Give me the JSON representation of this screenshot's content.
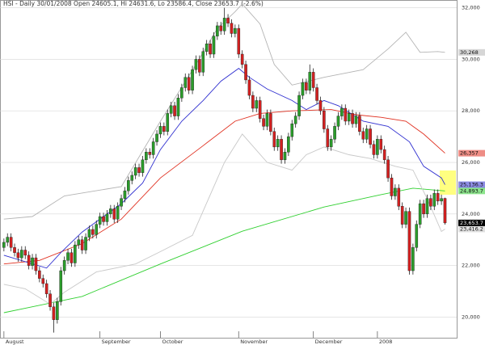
{
  "chart_data": {
    "type": "candlestick",
    "title": "HSI - Daily 30/01/2008 Open 24605.1, Hi 24631.6, Lo 23586.4, Close 23653.7 (-2.6%)",
    "up_color": "#2a9d2a",
    "down_color": "#d42020",
    "xlim": [
      -1.1,
      127.3
    ],
    "ylim": [
      19200,
      32300
    ],
    "yticks": [
      {
        "value": 20000,
        "label": "20,000"
      },
      {
        "value": 22000,
        "label": "22,000"
      },
      {
        "value": 24000,
        "label": "24,000"
      },
      {
        "value": 26000,
        "label": "26,000"
      },
      {
        "value": 28000,
        "label": "28,000"
      },
      {
        "value": 30000,
        "label": "30,000"
      },
      {
        "value": 32000,
        "label": "32,000"
      }
    ],
    "xticks": [
      {
        "value": 0,
        "label": "August"
      },
      {
        "value": 27,
        "label": "September"
      },
      {
        "value": 44,
        "label": "October"
      },
      {
        "value": 66,
        "label": "November"
      },
      {
        "value": 87,
        "label": "December"
      },
      {
        "value": 105,
        "label": "2008"
      }
    ],
    "close_label": "23,653.7",
    "ohlc": [
      [
        22700,
        23050,
        22550,
        22900
      ],
      [
        22900,
        23250,
        22750,
        23100
      ],
      [
        23100,
        23250,
        22550,
        22700
      ],
      [
        22700,
        22850,
        22350,
        22500
      ],
      [
        22500,
        22650,
        22150,
        22300
      ],
      [
        22300,
        22750,
        22150,
        22600
      ],
      [
        22600,
        22750,
        22250,
        22400
      ],
      [
        22400,
        22550,
        21850,
        22000
      ],
      [
        22000,
        22450,
        21850,
        22300
      ],
      [
        22300,
        22450,
        21650,
        21800
      ],
      [
        21800,
        21950,
        21350,
        21500
      ],
      [
        21500,
        21650,
        21150,
        21300
      ],
      [
        21300,
        21450,
        20750,
        20900
      ],
      [
        20900,
        21050,
        20250,
        20400
      ],
      [
        20400,
        20550,
        19400,
        19900
      ],
      [
        19900,
        20750,
        19750,
        20600
      ],
      [
        20600,
        21950,
        20450,
        21800
      ],
      [
        21800,
        22350,
        21650,
        22200
      ],
      [
        22200,
        22650,
        22050,
        22500
      ],
      [
        22500,
        22650,
        21950,
        22100
      ],
      [
        22100,
        22950,
        21950,
        22800
      ],
      [
        22800,
        23150,
        22650,
        23000
      ],
      [
        23000,
        23150,
        22450,
        22600
      ],
      [
        22600,
        23250,
        22450,
        23100
      ],
      [
        23100,
        23550,
        22950,
        23400
      ],
      [
        23400,
        23550,
        23050,
        23200
      ],
      [
        23200,
        23750,
        23050,
        23600
      ],
      [
        23600,
        24050,
        23450,
        23900
      ],
      [
        23900,
        24050,
        23550,
        23700
      ],
      [
        23700,
        24150,
        23550,
        24000
      ],
      [
        24000,
        24350,
        23850,
        24200
      ],
      [
        24200,
        24350,
        23650,
        23800
      ],
      [
        23800,
        24450,
        23650,
        24300
      ],
      [
        24300,
        24750,
        24150,
        24600
      ],
      [
        24600,
        25050,
        24450,
        24900
      ],
      [
        24900,
        25450,
        24750,
        25300
      ],
      [
        25300,
        25650,
        25150,
        25500
      ],
      [
        25500,
        25950,
        25350,
        25800
      ],
      [
        25800,
        25950,
        25450,
        25600
      ],
      [
        25600,
        26250,
        25450,
        26100
      ],
      [
        26100,
        26550,
        25950,
        26400
      ],
      [
        26400,
        26550,
        26150,
        26300
      ],
      [
        26300,
        26950,
        26150,
        26800
      ],
      [
        26800,
        27250,
        26650,
        27100
      ],
      [
        27100,
        27550,
        26950,
        27400
      ],
      [
        27400,
        27550,
        27050,
        27200
      ],
      [
        27200,
        28050,
        27050,
        27900
      ],
      [
        27900,
        28350,
        27750,
        28200
      ],
      [
        28200,
        28350,
        27650,
        27800
      ],
      [
        27800,
        28650,
        27650,
        28500
      ],
      [
        28500,
        29050,
        28350,
        28900
      ],
      [
        28900,
        29450,
        28750,
        29300
      ],
      [
        29300,
        29450,
        28650,
        28800
      ],
      [
        28800,
        29750,
        28650,
        29600
      ],
      [
        29600,
        30150,
        29450,
        30000
      ],
      [
        30000,
        30150,
        29350,
        29500
      ],
      [
        29500,
        30450,
        29350,
        30300
      ],
      [
        30300,
        30750,
        30150,
        30600
      ],
      [
        30600,
        30750,
        30050,
        30200
      ],
      [
        30200,
        31050,
        30050,
        30900
      ],
      [
        30900,
        31450,
        30750,
        31300
      ],
      [
        31300,
        31450,
        30950,
        31100
      ],
      [
        31100,
        32000,
        30950,
        31600
      ],
      [
        31600,
        31750,
        31250,
        31400
      ],
      [
        31400,
        31550,
        30850,
        31000
      ],
      [
        31000,
        31350,
        30850,
        31200
      ],
      [
        31200,
        31350,
        30050,
        30200
      ],
      [
        30200,
        30350,
        29650,
        29800
      ],
      [
        29800,
        29950,
        29050,
        29200
      ],
      [
        29200,
        29350,
        28450,
        28600
      ],
      [
        28600,
        28750,
        27950,
        28100
      ],
      [
        28100,
        28550,
        27950,
        28400
      ],
      [
        28400,
        28550,
        27550,
        27700
      ],
      [
        27700,
        27850,
        27250,
        27400
      ],
      [
        27400,
        28050,
        27250,
        27900
      ],
      [
        27900,
        28050,
        27050,
        27200
      ],
      [
        27200,
        27350,
        26450,
        26600
      ],
      [
        26600,
        27050,
        26450,
        26900
      ],
      [
        26900,
        27050,
        25950,
        26100
      ],
      [
        26100,
        26550,
        25950,
        26400
      ],
      [
        26400,
        27150,
        26250,
        27000
      ],
      [
        27000,
        27650,
        26850,
        27500
      ],
      [
        27500,
        27950,
        27350,
        27800
      ],
      [
        27800,
        28750,
        27650,
        28600
      ],
      [
        28600,
        29250,
        28450,
        29100
      ],
      [
        29100,
        29250,
        28650,
        28800
      ],
      [
        28800,
        29800,
        28650,
        29500
      ],
      [
        29500,
        29650,
        28750,
        28900
      ],
      [
        28900,
        29050,
        28250,
        28400
      ],
      [
        28400,
        28550,
        27850,
        28000
      ],
      [
        28000,
        28150,
        27150,
        27300
      ],
      [
        27300,
        27450,
        26450,
        26600
      ],
      [
        26600,
        27050,
        26450,
        26900
      ],
      [
        26900,
        27550,
        26750,
        27400
      ],
      [
        27400,
        27950,
        27250,
        27800
      ],
      [
        27800,
        28250,
        27650,
        28100
      ],
      [
        28100,
        28250,
        27450,
        27600
      ],
      [
        27600,
        28050,
        27450,
        27900
      ],
      [
        27900,
        28050,
        27350,
        27500
      ],
      [
        27500,
        27950,
        27350,
        27800
      ],
      [
        27800,
        27950,
        27050,
        27200
      ],
      [
        27200,
        27350,
        26750,
        26900
      ],
      [
        26900,
        27450,
        26750,
        27300
      ],
      [
        27300,
        27450,
        26550,
        26700
      ],
      [
        26700,
        26850,
        26150,
        26300
      ],
      [
        26300,
        27050,
        26150,
        26900
      ],
      [
        26900,
        27050,
        26350,
        26500
      ],
      [
        26500,
        26650,
        25950,
        26100
      ],
      [
        26100,
        26250,
        25250,
        25400
      ],
      [
        25400,
        25550,
        24550,
        24700
      ],
      [
        24700,
        25150,
        24550,
        25000
      ],
      [
        25000,
        25150,
        24150,
        24300
      ],
      [
        24300,
        24450,
        23450,
        23600
      ],
      [
        23600,
        24250,
        23450,
        24100
      ],
      [
        24100,
        24250,
        21650,
        21800
      ],
      [
        21800,
        22850,
        21650,
        22700
      ],
      [
        22700,
        23750,
        22550,
        23600
      ],
      [
        23600,
        24550,
        23450,
        24400
      ],
      [
        24400,
        24550,
        23850,
        24000
      ],
      [
        24000,
        24750,
        23850,
        24600
      ],
      [
        24600,
        24750,
        24150,
        24300
      ],
      [
        24300,
        24950,
        24150,
        24800
      ],
      [
        24800,
        24950,
        24350,
        24500
      ],
      [
        24500,
        24750,
        24350,
        24600
      ],
      [
        24605.1,
        24631.6,
        23586.4,
        23653.7
      ]
    ],
    "series": [
      {
        "color": "#b4b4b4",
        "label": "30,268",
        "x": [
          0,
          8,
          17,
          33,
          44,
          54,
          60,
          65,
          67,
          72,
          76,
          81,
          90,
          101,
          108,
          113,
          117,
          122,
          124
        ],
        "values": [
          23800,
          23900,
          24700,
          25060,
          27600,
          29800,
          31200,
          31850,
          32150,
          31370,
          29800,
          29000,
          29300,
          29600,
          30400,
          31050,
          30270,
          30300,
          30268
        ]
      },
      {
        "color": "#e03020",
        "label": "26,357",
        "x": [
          0,
          10,
          22,
          33,
          44,
          56,
          65,
          72,
          81,
          92,
          99,
          106,
          113,
          118,
          124
        ],
        "values": [
          22060,
          22200,
          22850,
          23800,
          25400,
          26650,
          27600,
          27900,
          28000,
          28050,
          27850,
          27750,
          27600,
          27100,
          26357
        ]
      },
      {
        "color": "#3030d0",
        "label": "25,136.3",
        "x": [
          0,
          12,
          16,
          22,
          27,
          33,
          39,
          44,
          50,
          56,
          61,
          66,
          69,
          74,
          81,
          85,
          90,
          94,
          101,
          108,
          114,
          118,
          123,
          124
        ],
        "values": [
          22400,
          21900,
          22500,
          23300,
          23800,
          24400,
          25200,
          26500,
          27600,
          28400,
          29150,
          29650,
          29300,
          28850,
          28400,
          28050,
          28400,
          28200,
          27600,
          27400,
          26800,
          25850,
          25400,
          25136.3
        ]
      },
      {
        "color": "#30d030",
        "label": "24,893.7",
        "x": [
          0,
          22,
          44,
          67,
          90,
          106,
          115,
          124
        ],
        "values": [
          20170,
          20800,
          22060,
          23330,
          24270,
          24750,
          25000,
          24893.7
        ]
      },
      {
        "color": "#c8c8c8",
        "label": "23,416.2",
        "x": [
          0,
          6,
          13,
          17,
          26,
          37,
          44,
          53,
          62,
          67,
          74,
          81,
          85,
          90,
          97,
          103,
          110,
          115,
          119,
          123,
          124
        ],
        "values": [
          21270,
          21100,
          20500,
          20960,
          21750,
          22060,
          22540,
          23170,
          26000,
          27100,
          26000,
          25700,
          26300,
          26600,
          26300,
          26150,
          25850,
          25700,
          24590,
          23320,
          23416.2
        ]
      }
    ]
  }
}
